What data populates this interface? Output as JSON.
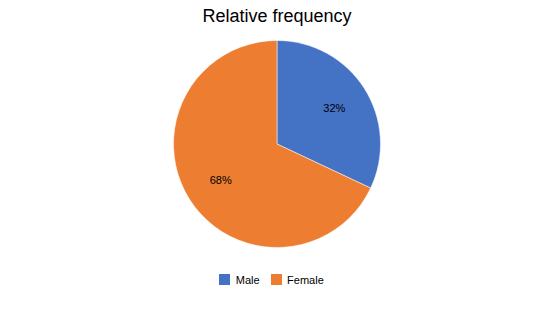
{
  "chart_data": {
    "type": "pie",
    "title": "Relative frequency",
    "categories": [
      "Male",
      "Female"
    ],
    "values": [
      32,
      68
    ],
    "value_labels": [
      "32%",
      "68%"
    ],
    "colors": [
      "#4472C4",
      "#ED7D31"
    ],
    "data_labels": true,
    "legend": "bottom"
  }
}
